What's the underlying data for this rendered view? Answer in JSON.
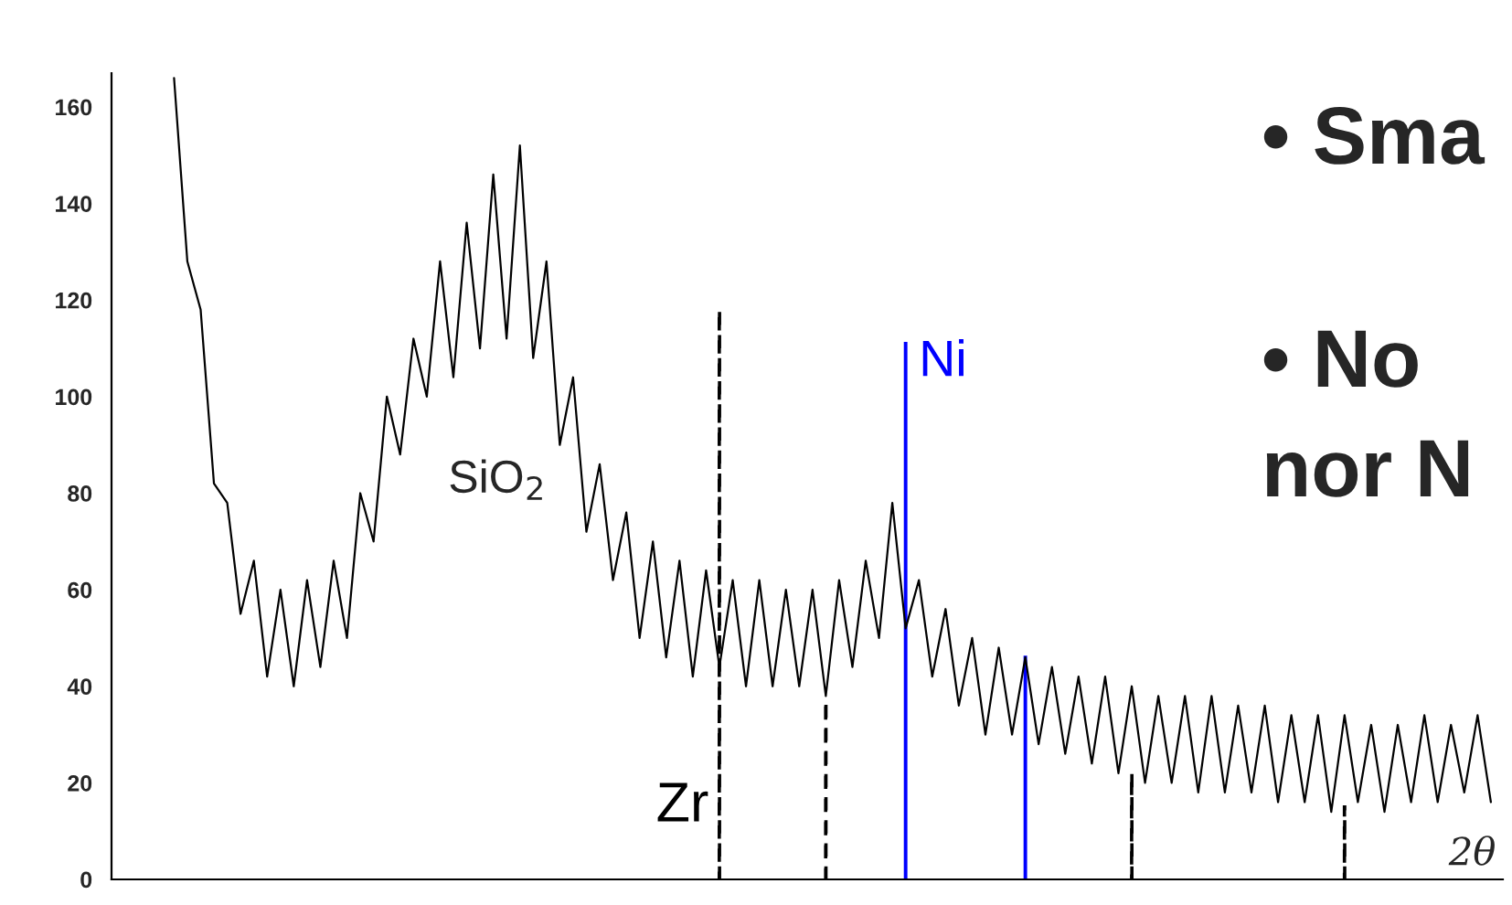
{
  "chart_data": {
    "type": "line",
    "xlabel": "2θ",
    "annotations": [
      "SiO$_{2}$",
      "• Sma",
      "• No",
      "nor N"
    ],
    "categories": [
      null,
      null,
      null,
      null,
      null,
      null,
      null,
      null,
      null,
      null,
      null,
      null,
      null,
      null,
      null,
      null,
      null,
      null,
      null,
      null,
      null,
      null,
      null,
      null,
      null,
      null,
      null,
      null,
      null,
      null,
      null,
      null,
      null,
      null,
      null,
      null,
      null,
      null,
      null,
      null,
      null,
      null,
      null,
      null,
      null,
      null,
      null,
      null,
      null,
      null,
      null,
      null,
      null,
      null,
      null,
      null,
      null,
      null,
      null,
      null,
      null,
      null,
      null,
      null,
      null,
      null,
      null,
      null,
      null,
      null,
      null,
      null,
      null,
      null,
      null,
      null,
      null,
      null,
      null,
      null,
      null,
      null,
      null,
      null,
      null,
      null,
      null,
      null,
      null,
      null,
      null,
      null,
      null,
      null,
      null,
      null,
      null,
      null,
      null,
      null
    ],
    "ylim": [
      0,
      167
    ],
    "yticks": [
      0,
      20,
      40,
      60,
      80,
      100,
      120,
      140,
      160
    ],
    "tick_labels": "y",
    "grid": false,
    "series": [
      {
        "color": "#000000",
        "values": [
          166,
          128,
          118,
          82,
          78,
          55,
          66,
          42,
          60,
          40,
          62,
          44,
          66,
          50,
          80,
          70,
          100,
          88,
          112,
          100,
          128,
          104,
          136,
          110,
          146,
          112,
          152,
          108,
          128,
          90,
          104,
          72,
          86,
          62,
          76,
          50,
          70,
          46,
          66,
          42,
          64,
          44,
          62,
          40,
          62,
          40,
          60,
          40,
          60,
          38,
          62,
          44,
          66,
          50,
          78,
          52,
          62,
          42,
          56,
          36,
          50,
          30,
          48,
          30,
          46,
          28,
          44,
          26,
          42,
          24,
          42,
          22,
          40,
          20,
          38,
          20,
          38,
          18,
          38,
          18,
          36,
          18,
          36,
          16,
          34,
          16,
          34,
          14,
          34,
          16,
          32,
          14,
          32,
          16,
          34,
          16,
          32,
          18,
          34,
          16
        ]
      },
      {
        "type": "bar",
        "name": "Zr",
        "color": "#000000",
        "line_style": "dashed",
        "values": [
          null,
          null,
          null,
          null,
          null,
          null,
          null,
          null,
          null,
          null,
          null,
          null,
          null,
          null,
          null,
          null,
          null,
          null,
          null,
          null,
          null,
          null,
          null,
          null,
          null,
          null,
          null,
          null,
          null,
          null,
          null,
          null,
          null,
          null,
          null,
          null,
          null,
          null,
          null,
          null,
          null,
          118,
          null,
          null,
          null,
          null,
          null,
          null,
          null,
          37,
          null,
          null,
          null,
          null,
          null,
          null,
          null,
          null,
          null,
          null,
          null,
          null,
          null,
          null,
          null,
          null,
          null,
          null,
          null,
          null,
          null,
          null,
          22,
          null,
          null,
          null,
          null,
          null,
          null,
          null,
          null,
          null,
          null,
          null,
          null,
          null,
          null,
          null,
          15,
          null,
          null,
          null,
          null,
          null,
          null,
          null,
          null,
          null,
          null,
          null
        ]
      },
      {
        "type": "bar",
        "name": "Ni",
        "color": "#0000ff",
        "line_style": "solid",
        "values": [
          null,
          null,
          null,
          null,
          null,
          null,
          null,
          null,
          null,
          null,
          null,
          null,
          null,
          null,
          null,
          null,
          null,
          null,
          null,
          null,
          null,
          null,
          null,
          null,
          null,
          null,
          null,
          null,
          null,
          null,
          null,
          null,
          null,
          null,
          null,
          null,
          null,
          null,
          null,
          null,
          null,
          null,
          null,
          null,
          null,
          null,
          null,
          null,
          null,
          null,
          null,
          null,
          null,
          null,
          null,
          111,
          null,
          null,
          null,
          null,
          null,
          null,
          null,
          null,
          46,
          null,
          null,
          null,
          null,
          null,
          null,
          null,
          null,
          null,
          null,
          null,
          null,
          null,
          null,
          null,
          null,
          null,
          null,
          null,
          null,
          null,
          null,
          null,
          null,
          null,
          null,
          null,
          null,
          null,
          null,
          null,
          null,
          null,
          null,
          null
        ]
      }
    ]
  }
}
